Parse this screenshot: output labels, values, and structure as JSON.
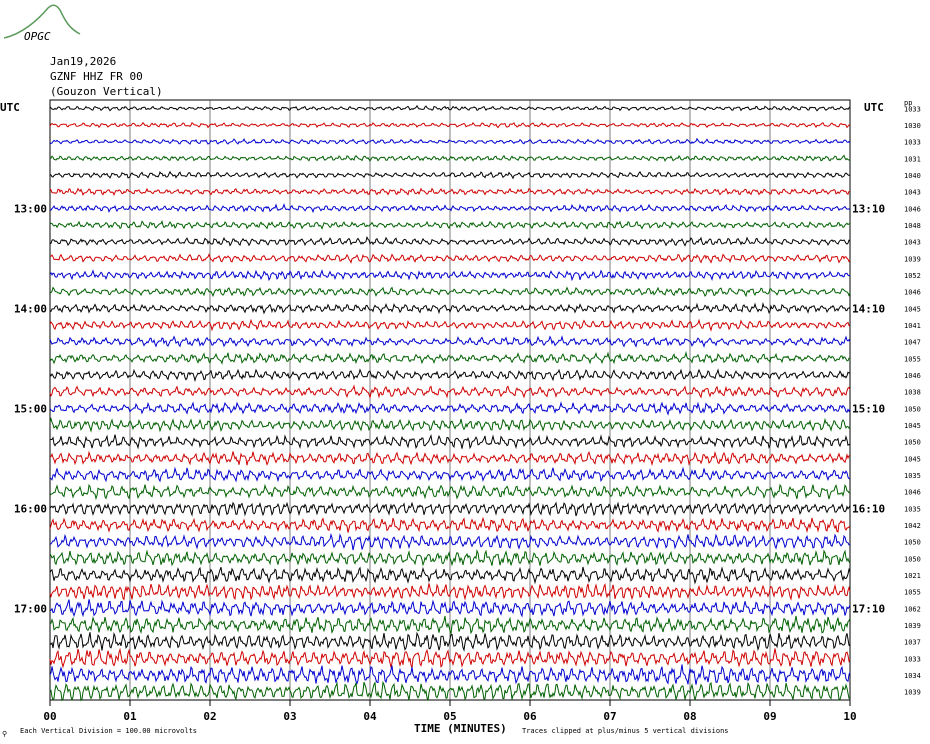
{
  "logo": {
    "text": "OPGC",
    "color": "#3a6ea8",
    "arc_color": "#5a9a5a"
  },
  "header": {
    "date": "Jan19,2026",
    "station": "GZNF HHZ FR 00",
    "location": "(Gouzon Vertical)"
  },
  "left_axis_label": "UTC",
  "right_axis_label": "UTC",
  "right_column_label": "pp",
  "footer": {
    "scale_prefix": "⚲",
    "scale_note": "Each Vertical Division =  100.00 microvolts",
    "clip_note": "Traces clipped at plus/minus 5 vertical divisions"
  },
  "chart_data": {
    "type": "line",
    "title": "",
    "xlabel": "TIME (MINUTES)",
    "ylabel": "",
    "xlim": [
      0,
      10
    ],
    "x_ticks": [
      "00",
      "01",
      "02",
      "03",
      "04",
      "05",
      "06",
      "07",
      "08",
      "09",
      "10"
    ],
    "grid": true,
    "trace_colors": [
      "#000000",
      "#d00000",
      "#0000d0",
      "#006000"
    ],
    "left_time_labels": [
      {
        "trace": 6,
        "label": "13:00"
      },
      {
        "trace": 12,
        "label": "14:00"
      },
      {
        "trace": 18,
        "label": "15:00"
      },
      {
        "trace": 24,
        "label": "16:00"
      },
      {
        "trace": 30,
        "label": "17:00"
      }
    ],
    "right_time_labels": [
      {
        "trace": 6,
        "label": "13:10"
      },
      {
        "trace": 12,
        "label": "14:10"
      },
      {
        "trace": 18,
        "label": "15:10"
      },
      {
        "trace": 24,
        "label": "16:10"
      },
      {
        "trace": 30,
        "label": "17:10"
      }
    ],
    "series": [
      {
        "pp": "1033",
        "amplitude": 0.26
      },
      {
        "pp": "1030",
        "amplitude": 0.28
      },
      {
        "pp": "1033",
        "amplitude": 0.3
      },
      {
        "pp": "1031",
        "amplitude": 0.32
      },
      {
        "pp": "1040",
        "amplitude": 0.36
      },
      {
        "pp": "1043",
        "amplitude": 0.38
      },
      {
        "pp": "1046",
        "amplitude": 0.4
      },
      {
        "pp": "1048",
        "amplitude": 0.42
      },
      {
        "pp": "1043",
        "amplitude": 0.46
      },
      {
        "pp": "1039",
        "amplitude": 0.48
      },
      {
        "pp": "1052",
        "amplitude": 0.52
      },
      {
        "pp": "1046",
        "amplitude": 0.5
      },
      {
        "pp": "1045",
        "amplitude": 0.52
      },
      {
        "pp": "1041",
        "amplitude": 0.54
      },
      {
        "pp": "1047",
        "amplitude": 0.56
      },
      {
        "pp": "1055",
        "amplitude": 0.6
      },
      {
        "pp": "1046",
        "amplitude": 0.62
      },
      {
        "pp": "1038",
        "amplitude": 0.64
      },
      {
        "pp": "1050",
        "amplitude": 0.66
      },
      {
        "pp": "1045",
        "amplitude": 0.7
      },
      {
        "pp": "1050",
        "amplitude": 0.72
      },
      {
        "pp": "1045",
        "amplitude": 0.74
      },
      {
        "pp": "1035",
        "amplitude": 0.76
      },
      {
        "pp": "1046",
        "amplitude": 0.8
      },
      {
        "pp": "1035",
        "amplitude": 0.82
      },
      {
        "pp": "1042",
        "amplitude": 0.84
      },
      {
        "pp": "1050",
        "amplitude": 0.86
      },
      {
        "pp": "1050",
        "amplitude": 0.88
      },
      {
        "pp": "1021",
        "amplitude": 0.92
      },
      {
        "pp": "1055",
        "amplitude": 0.94
      },
      {
        "pp": "1062",
        "amplitude": 0.98
      },
      {
        "pp": "1039",
        "amplitude": 1.0
      },
      {
        "pp": "1037",
        "amplitude": 1.02
      },
      {
        "pp": "1033",
        "amplitude": 1.06
      },
      {
        "pp": "1034",
        "amplitude": 1.1
      },
      {
        "pp": "1039",
        "amplitude": 1.14
      }
    ]
  }
}
